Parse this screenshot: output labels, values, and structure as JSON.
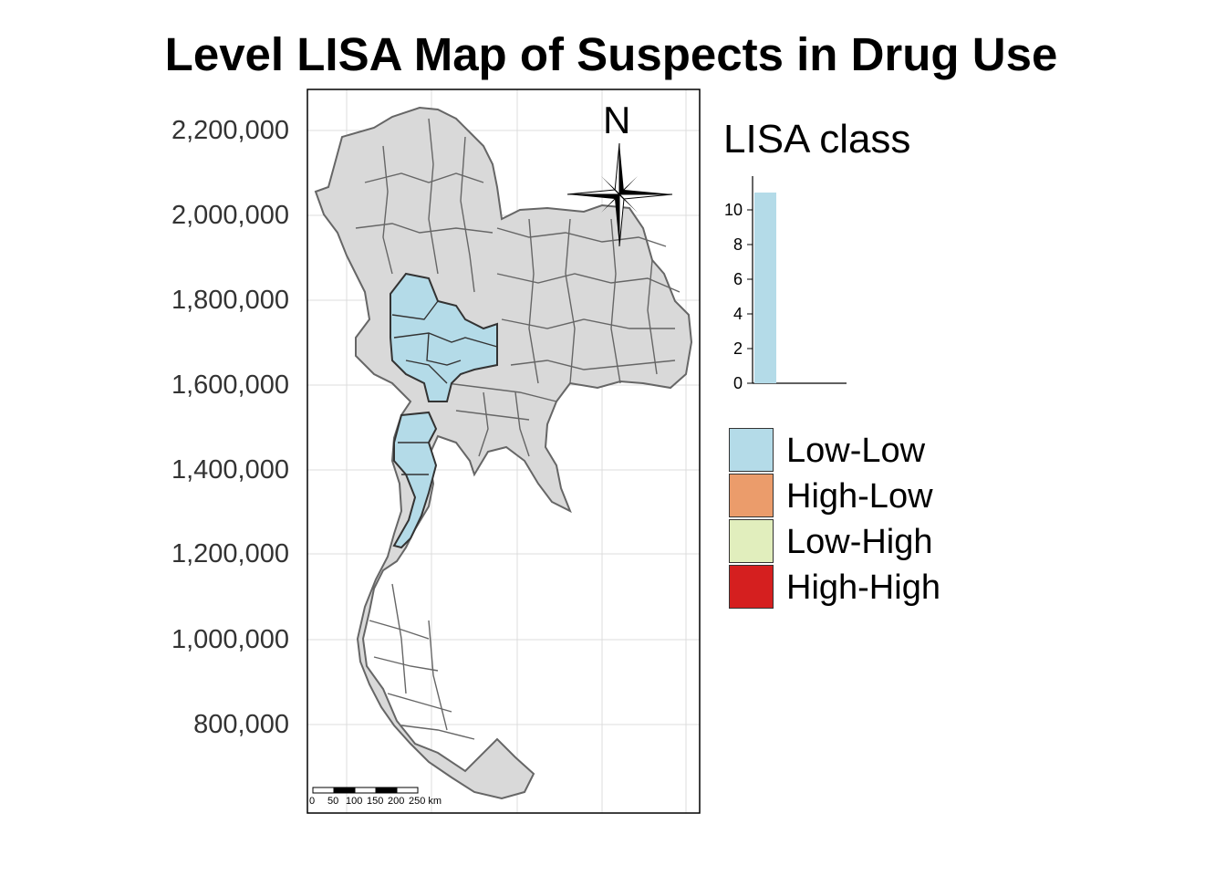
{
  "title": "Level LISA Map of Suspects in Drug Use",
  "y_axis": {
    "ticks": [
      "2,200,000",
      "2,000,000",
      "1,800,000",
      "1,600,000",
      "1,400,000",
      "1,200,000",
      "1,000,000",
      "800,000"
    ]
  },
  "north_arrow": {
    "label": "N"
  },
  "scale_bar": {
    "labels": [
      "0",
      "50",
      "100",
      "150",
      "200",
      "250 km"
    ]
  },
  "legend": {
    "title": "LISA class",
    "histogram": {
      "ticks": [
        "10",
        "8",
        "6",
        "4",
        "2",
        "0"
      ],
      "ymax": 11,
      "bars": [
        {
          "class": "Low-Low",
          "count": 11,
          "color": "#b4dbe8"
        }
      ]
    },
    "entries": [
      {
        "label": "Low-Low",
        "color": "#b4dbe8"
      },
      {
        "label": "High-Low",
        "color": "#eb9c6b"
      },
      {
        "label": "Low-High",
        "color": "#e1eebd"
      },
      {
        "label": "High-High",
        "color": "#d51f1f"
      }
    ]
  },
  "colors": {
    "province_fill": "#d9d9d9",
    "province_border": "#666666",
    "grid": "#dcdcdc"
  }
}
